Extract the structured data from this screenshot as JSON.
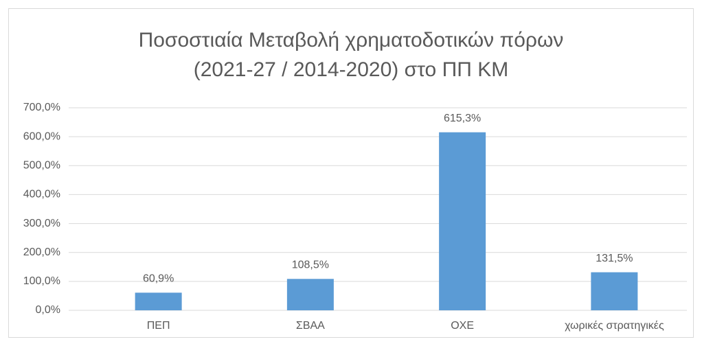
{
  "chart_data": {
    "type": "bar",
    "title": [
      "Ποσοστιαία Μεταβολή χρηματοδοτικών πόρων",
      "(2021-27 / 2014-2020) στο ΠΠ ΚΜ"
    ],
    "categories": [
      "ΠΕΠ",
      "ΣΒΑΑ",
      "ΟΧΕ",
      "χωρικές στρατηγικές"
    ],
    "values": [
      60.9,
      108.5,
      615.3,
      131.5
    ],
    "value_labels": [
      "60,9%",
      "108,5%",
      "615,3%",
      "131,5%"
    ],
    "color": "#5b9bd5",
    "ylim": [
      0,
      700
    ],
    "yticks": [
      {
        "value": 0,
        "label": "0,0%"
      },
      {
        "value": 100,
        "label": "100,0%"
      },
      {
        "value": 200,
        "label": "200,0%"
      },
      {
        "value": 300,
        "label": "300,0%"
      },
      {
        "value": 400,
        "label": "400,0%"
      },
      {
        "value": 500,
        "label": "500,0%"
      },
      {
        "value": 600,
        "label": "600,0%"
      },
      {
        "value": 700,
        "label": "700,0%"
      }
    ],
    "grid": true
  }
}
